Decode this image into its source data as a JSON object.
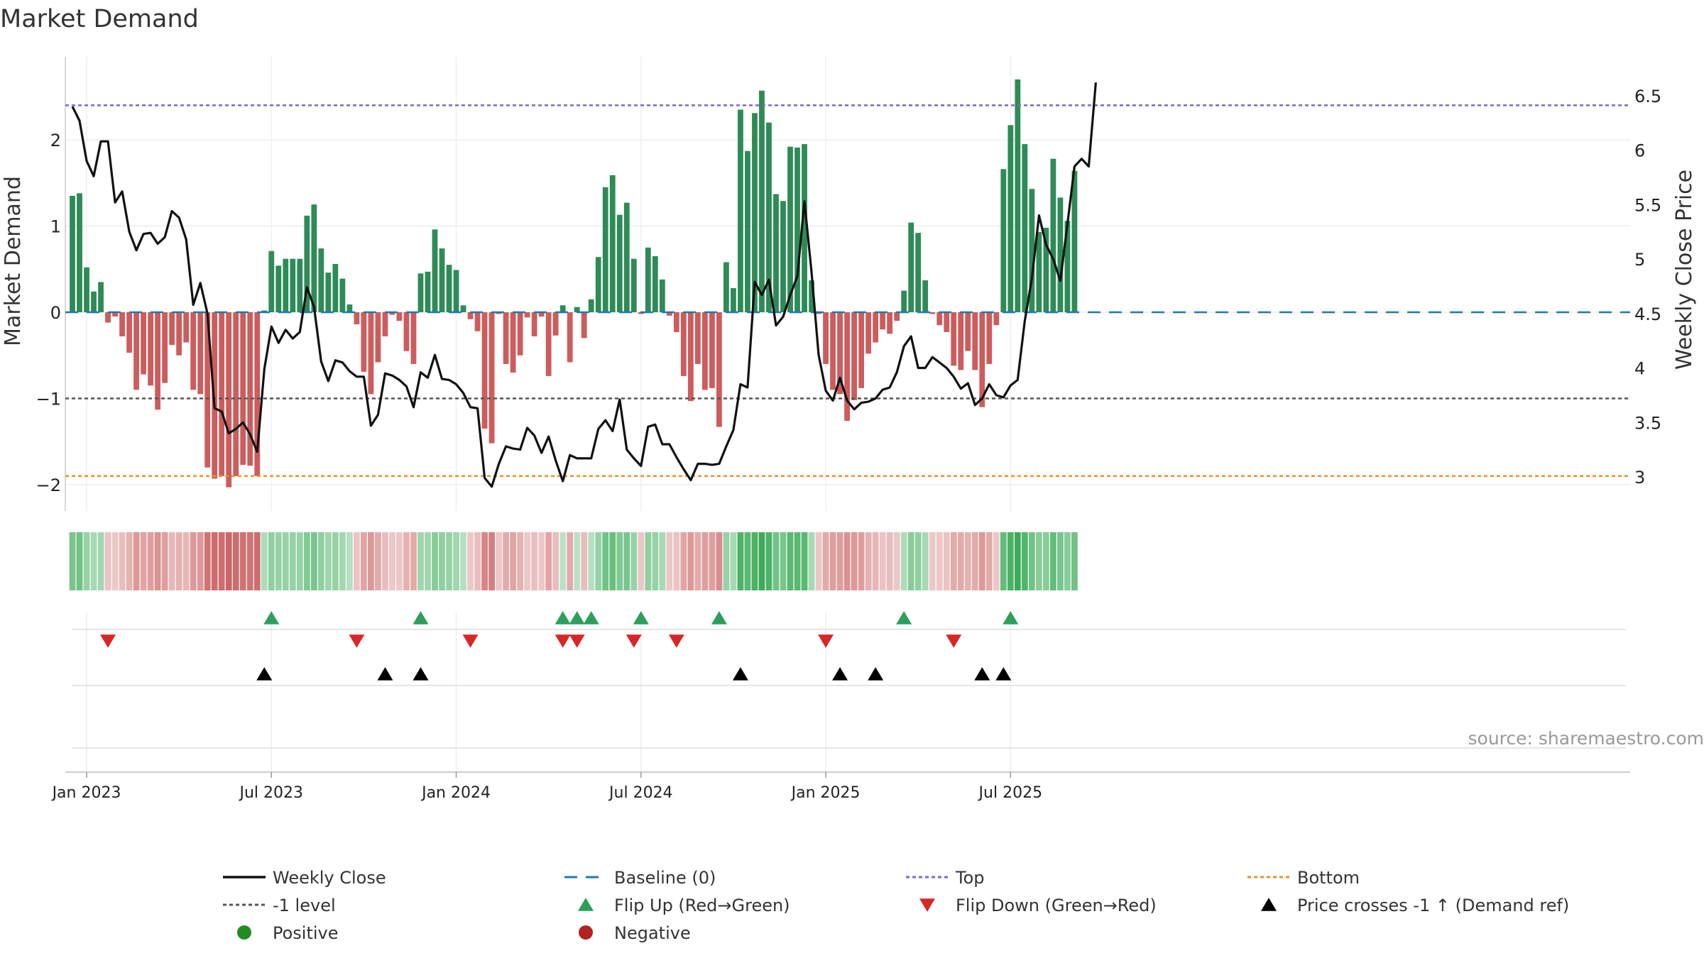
{
  "chart_data": {
    "type": "bar",
    "title": "Market Demand",
    "ylabel": "Market Demand",
    "y2label": "Weekly Close Price",
    "ylim": [
      -2.3,
      2.9
    ],
    "y2lim": [
      2.7,
      6.85
    ],
    "yticks": [
      -2,
      -1,
      0,
      1,
      2
    ],
    "y2ticks": [
      3,
      3.5,
      4,
      4.5,
      5,
      5.5,
      6,
      6.5
    ],
    "levels": {
      "top": 2.4,
      "bottom": -1.9,
      "minus_one": -1
    },
    "xtick_labels": [
      "Jan 2023",
      "Jul 2023",
      "Jan 2024",
      "Jul 2024",
      "Jan 2025",
      "Jul 2025"
    ],
    "xtick_week_index": [
      2,
      28,
      54,
      80,
      106,
      132
    ],
    "source": "source: sharemaestro.com",
    "colors": {
      "pos": "#2e8b57",
      "neg": "#cd5c5c",
      "price": "#111111",
      "baseline": "#1f77b4",
      "top": "#7b68c8",
      "bottom": "#e8902a",
      "minus_one": "#555555",
      "flip_up": "#2ca05a",
      "flip_down": "#d62728",
      "cross": "#000000"
    },
    "demand": [
      1.35,
      1.38,
      0.52,
      0.24,
      0.35,
      -0.12,
      -0.05,
      -0.28,
      -0.47,
      -0.9,
      -0.72,
      -0.85,
      -1.13,
      -0.82,
      -0.38,
      -0.5,
      -0.35,
      -0.9,
      -0.95,
      -1.8,
      -1.93,
      -1.9,
      -2.03,
      -1.9,
      -1.77,
      -1.78,
      -1.9,
      0.02,
      0.71,
      0.54,
      0.62,
      0.62,
      0.62,
      1.12,
      1.25,
      0.74,
      0.46,
      0.56,
      0.39,
      0.09,
      -0.14,
      -0.69,
      -0.95,
      -0.58,
      -0.28,
      -0.03,
      -0.1,
      -0.45,
      -0.6,
      0.45,
      0.47,
      0.96,
      0.74,
      0.55,
      0.49,
      0.08,
      -0.08,
      -0.22,
      -1.35,
      -1.52,
      -0.02,
      -0.6,
      -0.7,
      -0.5,
      -0.06,
      -0.28,
      -0.05,
      -0.74,
      -0.27,
      0.08,
      -0.58,
      0.06,
      -0.3,
      0.15,
      0.64,
      1.45,
      1.59,
      1.13,
      1.27,
      0.62,
      -0.02,
      0.75,
      0.65,
      0.38,
      -0.04,
      -0.23,
      -0.74,
      -1.03,
      -0.6,
      -0.9,
      -0.88,
      -1.33,
      0.58,
      0.28,
      2.35,
      1.87,
      2.31,
      2.57,
      2.2,
      1.37,
      1.29,
      1.92,
      1.91,
      1.95,
      0.37,
      -0.02,
      -0.6,
      -0.9,
      -0.95,
      -1.26,
      -1.02,
      -0.88,
      -0.48,
      -0.35,
      -0.2,
      -0.25,
      -0.1,
      0.25,
      1.04,
      0.92,
      0.37,
      -0.02,
      -0.15,
      -0.23,
      -0.62,
      -0.67,
      -0.45,
      -0.67,
      -1.1,
      -0.6,
      -0.15,
      1.66,
      2.17,
      2.7,
      1.95,
      1.43,
      0.93,
      0.98,
      1.78,
      1.33,
      1.06,
      1.64
    ],
    "demand_intensity": [
      0.55,
      0.6,
      0.35,
      0.25,
      0.28,
      0.15,
      0.12,
      0.2,
      0.3,
      0.5,
      0.4,
      0.45,
      0.55,
      0.45,
      0.25,
      0.3,
      0.25,
      0.5,
      0.5,
      0.8,
      0.85,
      0.85,
      0.9,
      0.85,
      0.8,
      0.8,
      0.85,
      0.2,
      0.4,
      0.35,
      0.35,
      0.35,
      0.35,
      0.5,
      0.55,
      0.4,
      0.3,
      0.35,
      0.28,
      0.15,
      0.15,
      0.4,
      0.5,
      0.35,
      0.2,
      0.12,
      0.12,
      0.3,
      0.35,
      0.3,
      0.3,
      0.45,
      0.4,
      0.35,
      0.3,
      0.15,
      0.12,
      0.2,
      0.65,
      0.7,
      0.12,
      0.35,
      0.4,
      0.3,
      0.12,
      0.2,
      0.12,
      0.4,
      0.2,
      0.12,
      0.35,
      0.12,
      0.2,
      0.15,
      0.35,
      0.6,
      0.65,
      0.5,
      0.55,
      0.35,
      0.12,
      0.4,
      0.35,
      0.25,
      0.12,
      0.15,
      0.4,
      0.5,
      0.35,
      0.45,
      0.45,
      0.6,
      0.35,
      0.25,
      0.85,
      0.75,
      0.85,
      0.95,
      0.85,
      0.6,
      0.55,
      0.75,
      0.75,
      0.75,
      0.25,
      0.12,
      0.35,
      0.45,
      0.45,
      0.55,
      0.5,
      0.45,
      0.3,
      0.25,
      0.15,
      0.2,
      0.12,
      0.2,
      0.45,
      0.4,
      0.25,
      0.12,
      0.12,
      0.15,
      0.35,
      0.35,
      0.3,
      0.35,
      0.5,
      0.35,
      0.12,
      0.7,
      0.85,
      0.95,
      0.8,
      0.6,
      0.45,
      0.45,
      0.7,
      0.55,
      0.45,
      0.6
    ],
    "price": [
      6.4,
      6.27,
      5.9,
      5.76,
      6.08,
      6.08,
      5.52,
      5.62,
      5.25,
      5.08,
      5.23,
      5.24,
      5.14,
      5.2,
      5.44,
      5.38,
      5.18,
      4.58,
      4.78,
      4.5,
      3.63,
      3.6,
      3.4,
      3.44,
      3.5,
      3.39,
      3.23,
      3.99,
      4.38,
      4.23,
      4.35,
      4.27,
      4.33,
      4.74,
      4.56,
      4.06,
      3.88,
      4.07,
      4.05,
      3.97,
      3.92,
      3.92,
      3.47,
      3.57,
      3.95,
      3.93,
      3.89,
      3.83,
      3.64,
      3.96,
      3.91,
      4.12,
      3.9,
      3.89,
      3.85,
      3.77,
      3.64,
      3.63,
      2.99,
      2.91,
      3.12,
      3.28,
      3.26,
      3.25,
      3.45,
      3.38,
      3.22,
      3.37,
      3.15,
      2.96,
      3.2,
      3.17,
      3.17,
      3.17,
      3.44,
      3.52,
      3.42,
      3.71,
      3.25,
      3.17,
      3.1,
      3.46,
      3.48,
      3.3,
      3.3,
      3.18,
      3.07,
      2.97,
      3.12,
      3.12,
      3.11,
      3.12,
      3.28,
      3.43,
      3.85,
      3.82,
      4.79,
      4.67,
      4.81,
      4.39,
      4.47,
      4.67,
      4.84,
      5.53,
      4.88,
      4.12,
      3.79,
      3.7,
      3.91,
      3.7,
      3.62,
      3.68,
      3.69,
      3.72,
      3.8,
      3.82,
      3.96,
      4.2,
      4.29,
      4.0,
      4.0,
      4.1,
      4.05,
      4.0,
      3.92,
      3.81,
      3.86,
      3.66,
      3.72,
      3.85,
      3.75,
      3.73,
      3.84,
      3.89,
      4.43,
      4.82,
      5.4,
      5.13,
      5.0,
      4.8,
      5.32,
      5.85,
      5.92,
      5.85,
      6.62
    ]
  },
  "flip_up_weeks": [
    28,
    49,
    69,
    71,
    73,
    80,
    91,
    117,
    132
  ],
  "flip_down_weeks": [
    5,
    40,
    56,
    69,
    71,
    79,
    85,
    106,
    124
  ],
  "cross_weeks": [
    27,
    44,
    49,
    94,
    108,
    113,
    128,
    131
  ],
  "legend": [
    {
      "label": "Weekly Close",
      "kind": "line-solid",
      "color": "#111111"
    },
    {
      "label": "Baseline (0)",
      "kind": "line-dash",
      "color": "#1f77b4"
    },
    {
      "label": "Top",
      "kind": "line-dot",
      "color": "#7b68c8"
    },
    {
      "label": "Bottom",
      "kind": "line-dot",
      "color": "#e8902a"
    },
    {
      "label": "-1 level",
      "kind": "line-dot",
      "color": "#555555"
    },
    {
      "label": "Flip Up (Red→Green)",
      "kind": "tri-up",
      "color": "#2ca05a"
    },
    {
      "label": "Flip Down (Green→Red)",
      "kind": "tri-down",
      "color": "#d62728"
    },
    {
      "label": "Price crosses -1 ↑ (Demand ref)",
      "kind": "tri-up",
      "color": "#000000"
    },
    {
      "label": "Positive",
      "kind": "dot",
      "color": "#228b22"
    },
    {
      "label": "Negative",
      "kind": "dot",
      "color": "#b22222"
    }
  ]
}
